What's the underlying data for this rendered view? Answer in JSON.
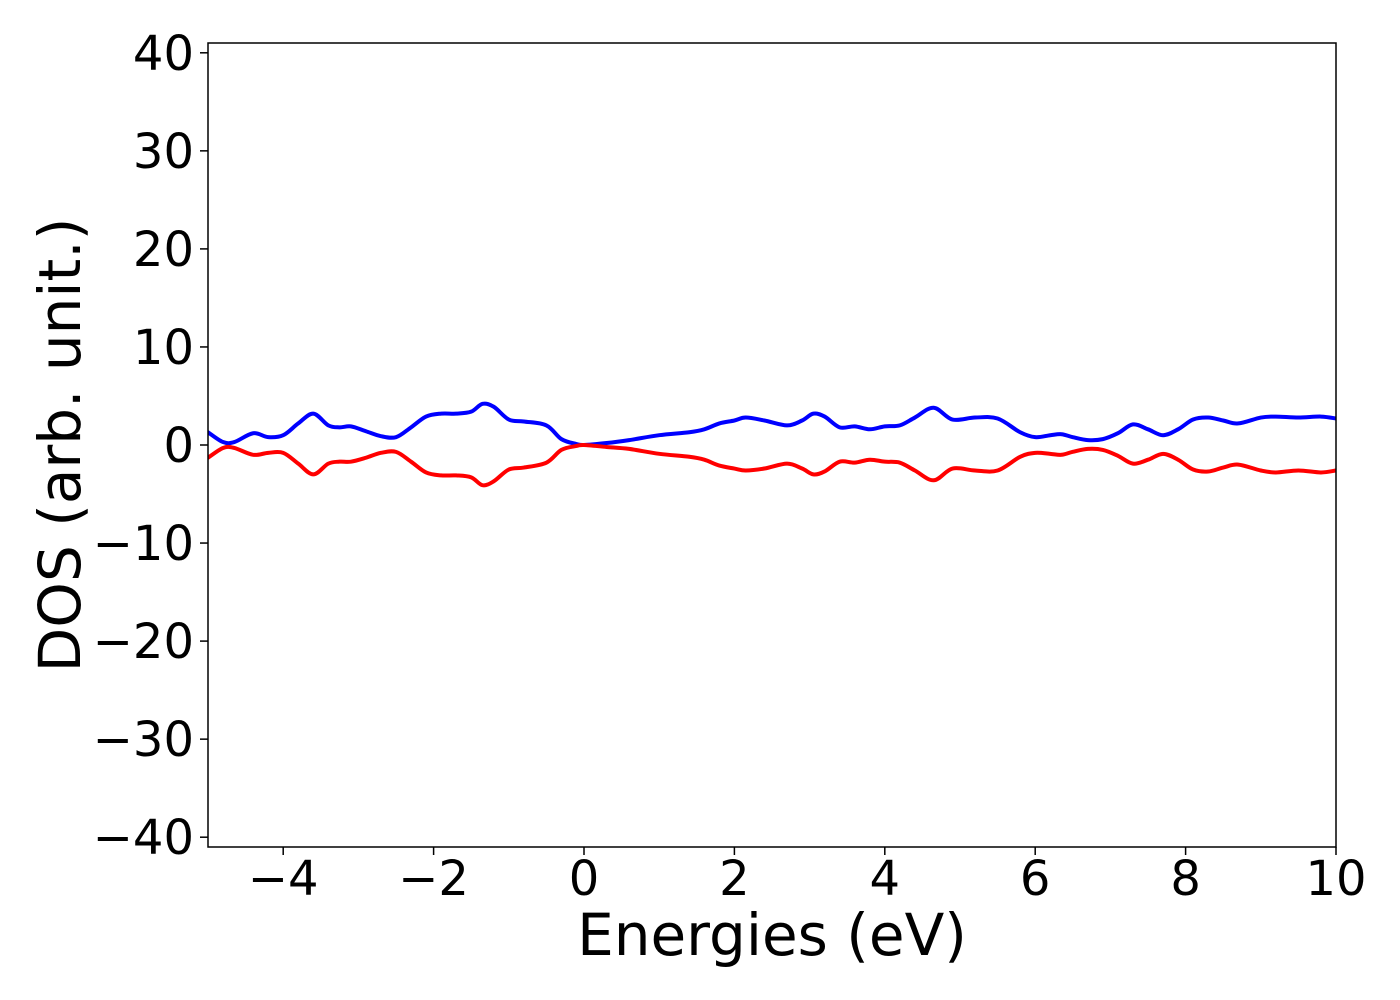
{
  "chart_data": {
    "type": "line",
    "title": "",
    "xlabel": "Energies (eV)",
    "ylabel": "DOS (arb. unit.)",
    "xlim": [
      -5,
      10
    ],
    "ylim": [
      -41,
      41
    ],
    "grid": false,
    "x_ticks": [
      -4,
      -2,
      0,
      2,
      4,
      6,
      8,
      10
    ],
    "y_ticks": [
      -40,
      -30,
      -20,
      -10,
      0,
      10,
      20,
      30,
      40
    ],
    "x_tick_labels": [
      "−4",
      "−2",
      "0",
      "2",
      "4",
      "6",
      "8",
      "10"
    ],
    "y_tick_labels": [
      "−40",
      "−30",
      "−20",
      "−10",
      "0",
      "10",
      "20",
      "30",
      "40"
    ],
    "series": [
      {
        "color": "#0000ff",
        "x": [
          -5.0,
          -4.8,
          -4.65,
          -4.4,
          -4.2,
          -4.0,
          -3.8,
          -3.6,
          -3.4,
          -3.25,
          -3.1,
          -2.9,
          -2.7,
          -2.5,
          -2.3,
          -2.1,
          -1.9,
          -1.7,
          -1.5,
          -1.35,
          -1.2,
          -1.0,
          -0.8,
          -0.5,
          -0.3,
          -0.1,
          0.0,
          0.3,
          0.6,
          1.0,
          1.4,
          1.6,
          1.8,
          2.0,
          2.15,
          2.4,
          2.7,
          2.9,
          3.05,
          3.2,
          3.4,
          3.6,
          3.8,
          4.0,
          4.2,
          4.4,
          4.65,
          4.9,
          5.2,
          5.5,
          5.8,
          6.0,
          6.2,
          6.35,
          6.5,
          6.7,
          6.9,
          7.1,
          7.3,
          7.5,
          7.7,
          7.9,
          8.1,
          8.3,
          8.5,
          8.7,
          9.0,
          9.2,
          9.5,
          9.8,
          10.0
        ],
        "y": [
          1.3,
          0.3,
          0.3,
          1.2,
          0.8,
          1.0,
          2.2,
          3.2,
          2.0,
          1.8,
          1.9,
          1.4,
          0.9,
          0.8,
          1.8,
          2.9,
          3.2,
          3.2,
          3.4,
          4.2,
          3.9,
          2.6,
          2.4,
          2.0,
          0.6,
          0.1,
          0.0,
          0.2,
          0.5,
          1.0,
          1.3,
          1.6,
          2.2,
          2.5,
          2.8,
          2.5,
          2.0,
          2.5,
          3.2,
          2.9,
          1.8,
          1.9,
          1.6,
          1.9,
          2.0,
          2.8,
          3.8,
          2.6,
          2.8,
          2.7,
          1.3,
          0.8,
          1.0,
          1.1,
          0.8,
          0.5,
          0.6,
          1.2,
          2.1,
          1.6,
          1.0,
          1.6,
          2.6,
          2.8,
          2.5,
          2.2,
          2.8,
          2.9,
          2.8,
          2.9,
          2.7
        ]
      },
      {
        "color": "#ff0000",
        "x": [
          -5.0,
          -4.8,
          -4.65,
          -4.4,
          -4.2,
          -4.0,
          -3.8,
          -3.6,
          -3.4,
          -3.25,
          -3.1,
          -2.9,
          -2.7,
          -2.5,
          -2.3,
          -2.1,
          -1.9,
          -1.7,
          -1.5,
          -1.35,
          -1.2,
          -1.0,
          -0.8,
          -0.5,
          -0.3,
          -0.1,
          0.0,
          0.3,
          0.6,
          1.0,
          1.4,
          1.6,
          1.8,
          2.0,
          2.15,
          2.4,
          2.7,
          2.9,
          3.05,
          3.2,
          3.4,
          3.6,
          3.8,
          4.0,
          4.2,
          4.4,
          4.65,
          4.9,
          5.2,
          5.5,
          5.8,
          6.0,
          6.2,
          6.35,
          6.5,
          6.7,
          6.9,
          7.1,
          7.3,
          7.5,
          7.7,
          7.9,
          8.1,
          8.3,
          8.5,
          8.7,
          9.0,
          9.2,
          9.5,
          9.8,
          10.0
        ],
        "y": [
          -1.3,
          -0.3,
          -0.3,
          -1.0,
          -0.8,
          -0.8,
          -1.9,
          -3.0,
          -1.9,
          -1.7,
          -1.7,
          -1.3,
          -0.8,
          -0.7,
          -1.7,
          -2.8,
          -3.1,
          -3.1,
          -3.3,
          -4.1,
          -3.7,
          -2.5,
          -2.3,
          -1.8,
          -0.5,
          -0.1,
          0.0,
          -0.2,
          -0.4,
          -0.9,
          -1.2,
          -1.5,
          -2.1,
          -2.4,
          -2.6,
          -2.4,
          -1.9,
          -2.4,
          -3.0,
          -2.7,
          -1.7,
          -1.8,
          -1.5,
          -1.7,
          -1.8,
          -2.6,
          -3.6,
          -2.4,
          -2.6,
          -2.6,
          -1.2,
          -0.8,
          -0.9,
          -1.0,
          -0.7,
          -0.4,
          -0.5,
          -1.1,
          -1.9,
          -1.5,
          -0.9,
          -1.5,
          -2.5,
          -2.7,
          -2.3,
          -2.0,
          -2.6,
          -2.8,
          -2.6,
          -2.8,
          -2.6
        ]
      }
    ]
  }
}
